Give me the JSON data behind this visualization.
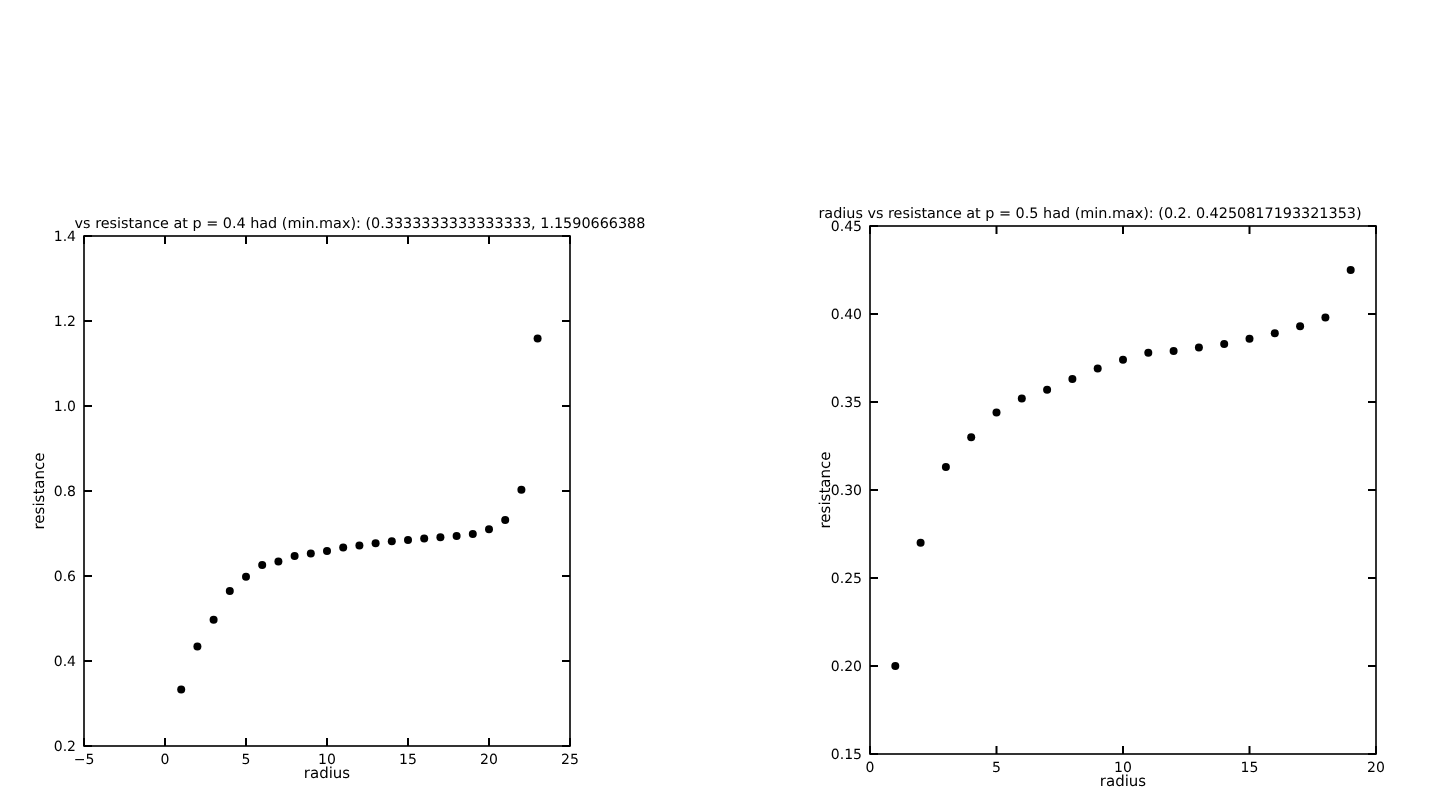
{
  "chart_data": [
    {
      "type": "scatter",
      "title": "vs resistance at p = 0.4 had (min.max): (0.3333333333333333, 1.1590666388",
      "xlabel": "radius",
      "ylabel": "resistance",
      "marker": "circle",
      "grid": false,
      "series": [
        {
          "color": "#000000",
          "x": [
            1,
            2,
            3,
            4,
            5,
            6,
            7,
            8,
            9,
            10,
            11,
            12,
            13,
            14,
            15,
            16,
            17,
            18,
            19,
            20,
            21,
            22,
            23
          ],
          "values": [
            0.333,
            0.434,
            0.497,
            0.565,
            0.598,
            0.626,
            0.634,
            0.647,
            0.653,
            0.659,
            0.667,
            0.672,
            0.677,
            0.682,
            0.685,
            0.688,
            0.691,
            0.694,
            0.699,
            0.71,
            0.732,
            0.803,
            1.159
          ]
        }
      ],
      "xlim": [
        -5,
        25
      ],
      "xticks": [
        {
          "value": -5,
          "label": "−5"
        },
        0,
        5,
        10,
        15,
        20,
        25
      ],
      "ylim": [
        0.2,
        1.4
      ],
      "yticks": [
        {
          "value": 0.2,
          "label": "0.2"
        },
        {
          "value": 0.4,
          "label": "0.4"
        },
        {
          "value": 0.6,
          "label": "0.6"
        },
        {
          "value": 0.8,
          "label": "0.8"
        },
        {
          "value": 1.0,
          "label": "1.0"
        },
        {
          "value": 1.2,
          "label": "1.2"
        },
        {
          "value": 1.4,
          "label": "1.4"
        }
      ]
    },
    {
      "type": "scatter",
      "title": "radius vs resistance at p = 0.5 had (min.max): (0.2. 0.4250817193321353)",
      "xlabel": "radius",
      "ylabel": "resistance",
      "marker": "circle",
      "grid": false,
      "series": [
        {
          "color": "#000000",
          "x": [
            1,
            2,
            3,
            4,
            5,
            6,
            7,
            8,
            9,
            10,
            11,
            12,
            13,
            14,
            15,
            16,
            17,
            18,
            19
          ],
          "values": [
            0.2,
            0.27,
            0.313,
            0.33,
            0.344,
            0.352,
            0.357,
            0.363,
            0.369,
            0.374,
            0.378,
            0.379,
            0.381,
            0.383,
            0.386,
            0.389,
            0.393,
            0.398,
            0.425
          ]
        }
      ],
      "xlim": [
        0,
        20
      ],
      "xticks": [
        0,
        5,
        10,
        15,
        20
      ],
      "ylim": [
        0.15,
        0.45
      ],
      "yticks": [
        {
          "value": 0.15,
          "label": "0.15"
        },
        {
          "value": 0.2,
          "label": "0.20"
        },
        {
          "value": 0.25,
          "label": "0.25"
        },
        {
          "value": 0.3,
          "label": "0.30"
        },
        {
          "value": 0.35,
          "label": "0.35"
        },
        {
          "value": 0.4,
          "label": "0.40"
        },
        {
          "value": 0.45,
          "label": "0.45"
        }
      ]
    }
  ]
}
